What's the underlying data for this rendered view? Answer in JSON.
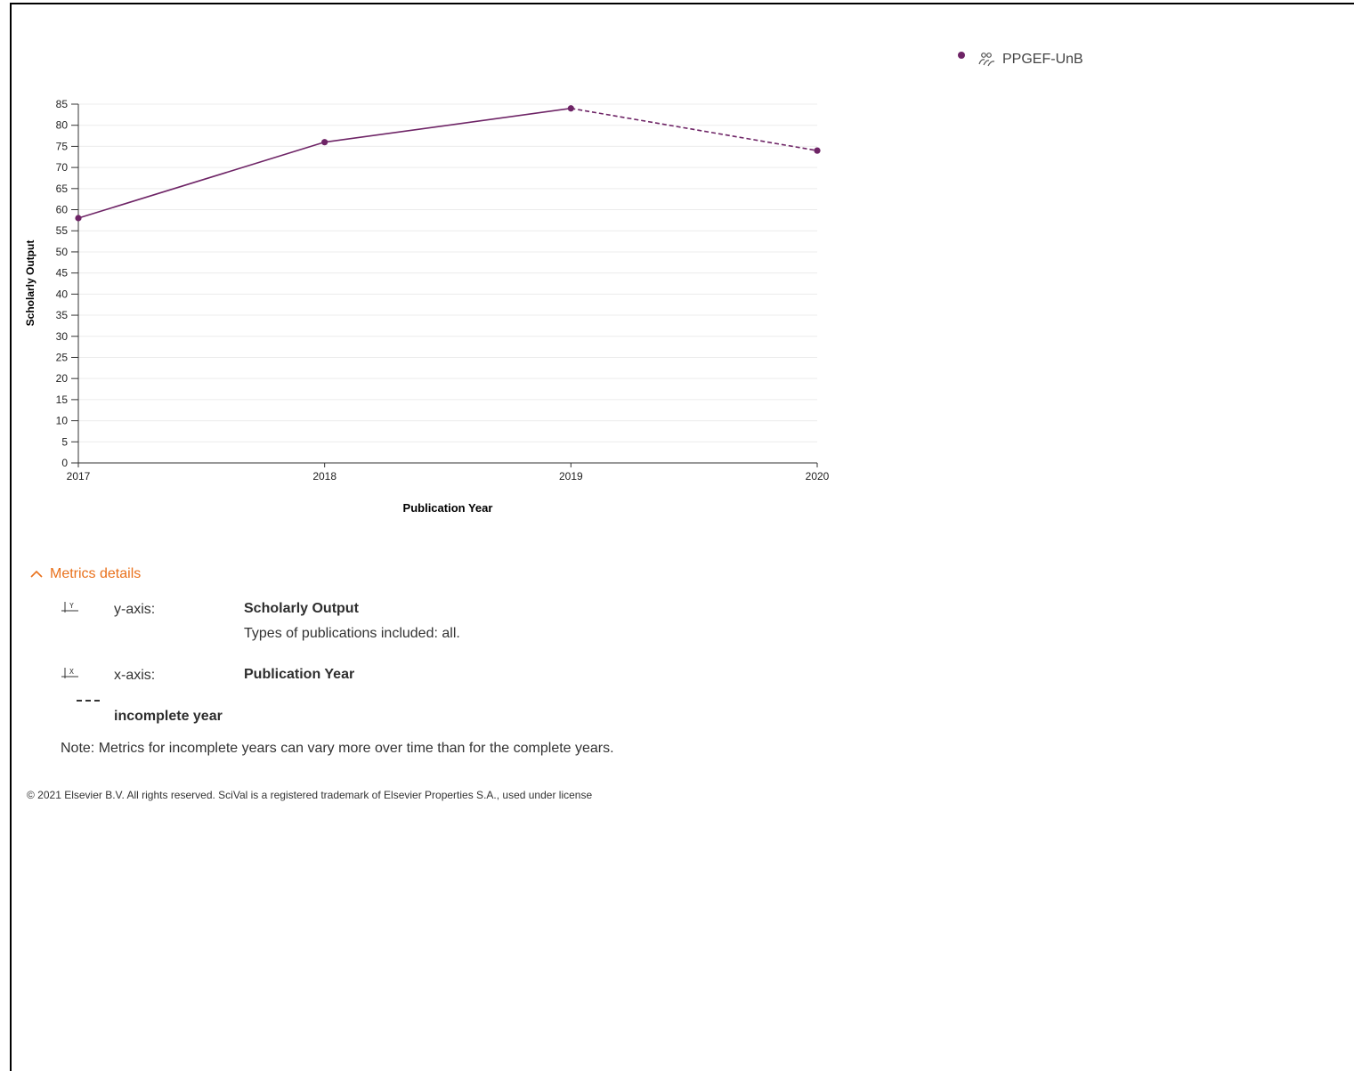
{
  "legend": {
    "series_name": "PPGEF-UnB",
    "group_icon": "research-group-icon"
  },
  "colors": {
    "series": "#6e2466",
    "accent": "#e9711c",
    "grid": "#ececec"
  },
  "chart_data": {
    "type": "line",
    "xlabel": "Publication Year",
    "ylabel": "Scholarly Output",
    "x": [
      2017,
      2018,
      2019,
      2020
    ],
    "x_tick_labels": [
      "2017",
      "2018",
      "2019",
      "2020"
    ],
    "series": [
      {
        "name": "PPGEF-UnB",
        "values": [
          58,
          76,
          84,
          74
        ],
        "incomplete_from_index": 2
      }
    ],
    "ylim": [
      0,
      85
    ],
    "y_ticks": [
      0,
      5,
      10,
      15,
      20,
      25,
      30,
      35,
      40,
      45,
      50,
      55,
      60,
      65,
      70,
      75,
      80,
      85
    ],
    "grid": true,
    "legend_position": "top-right"
  },
  "details": {
    "toggle_label": "Metrics details",
    "y_axis": {
      "label": "y-axis:",
      "value": "Scholarly Output",
      "description": "Types of publications included: all.",
      "icon_letter": "Y"
    },
    "x_axis": {
      "label": "x-axis:",
      "value": "Publication Year",
      "icon_letter": "X"
    },
    "incomplete": {
      "label": "incomplete year"
    },
    "note": "Note: Metrics for incomplete years can vary more over time than for the complete years."
  },
  "footer": {
    "copyright": "© 2021 Elsevier B.V. All rights reserved. SciVal is a registered trademark of Elsevier Properties S.A., used under license"
  }
}
